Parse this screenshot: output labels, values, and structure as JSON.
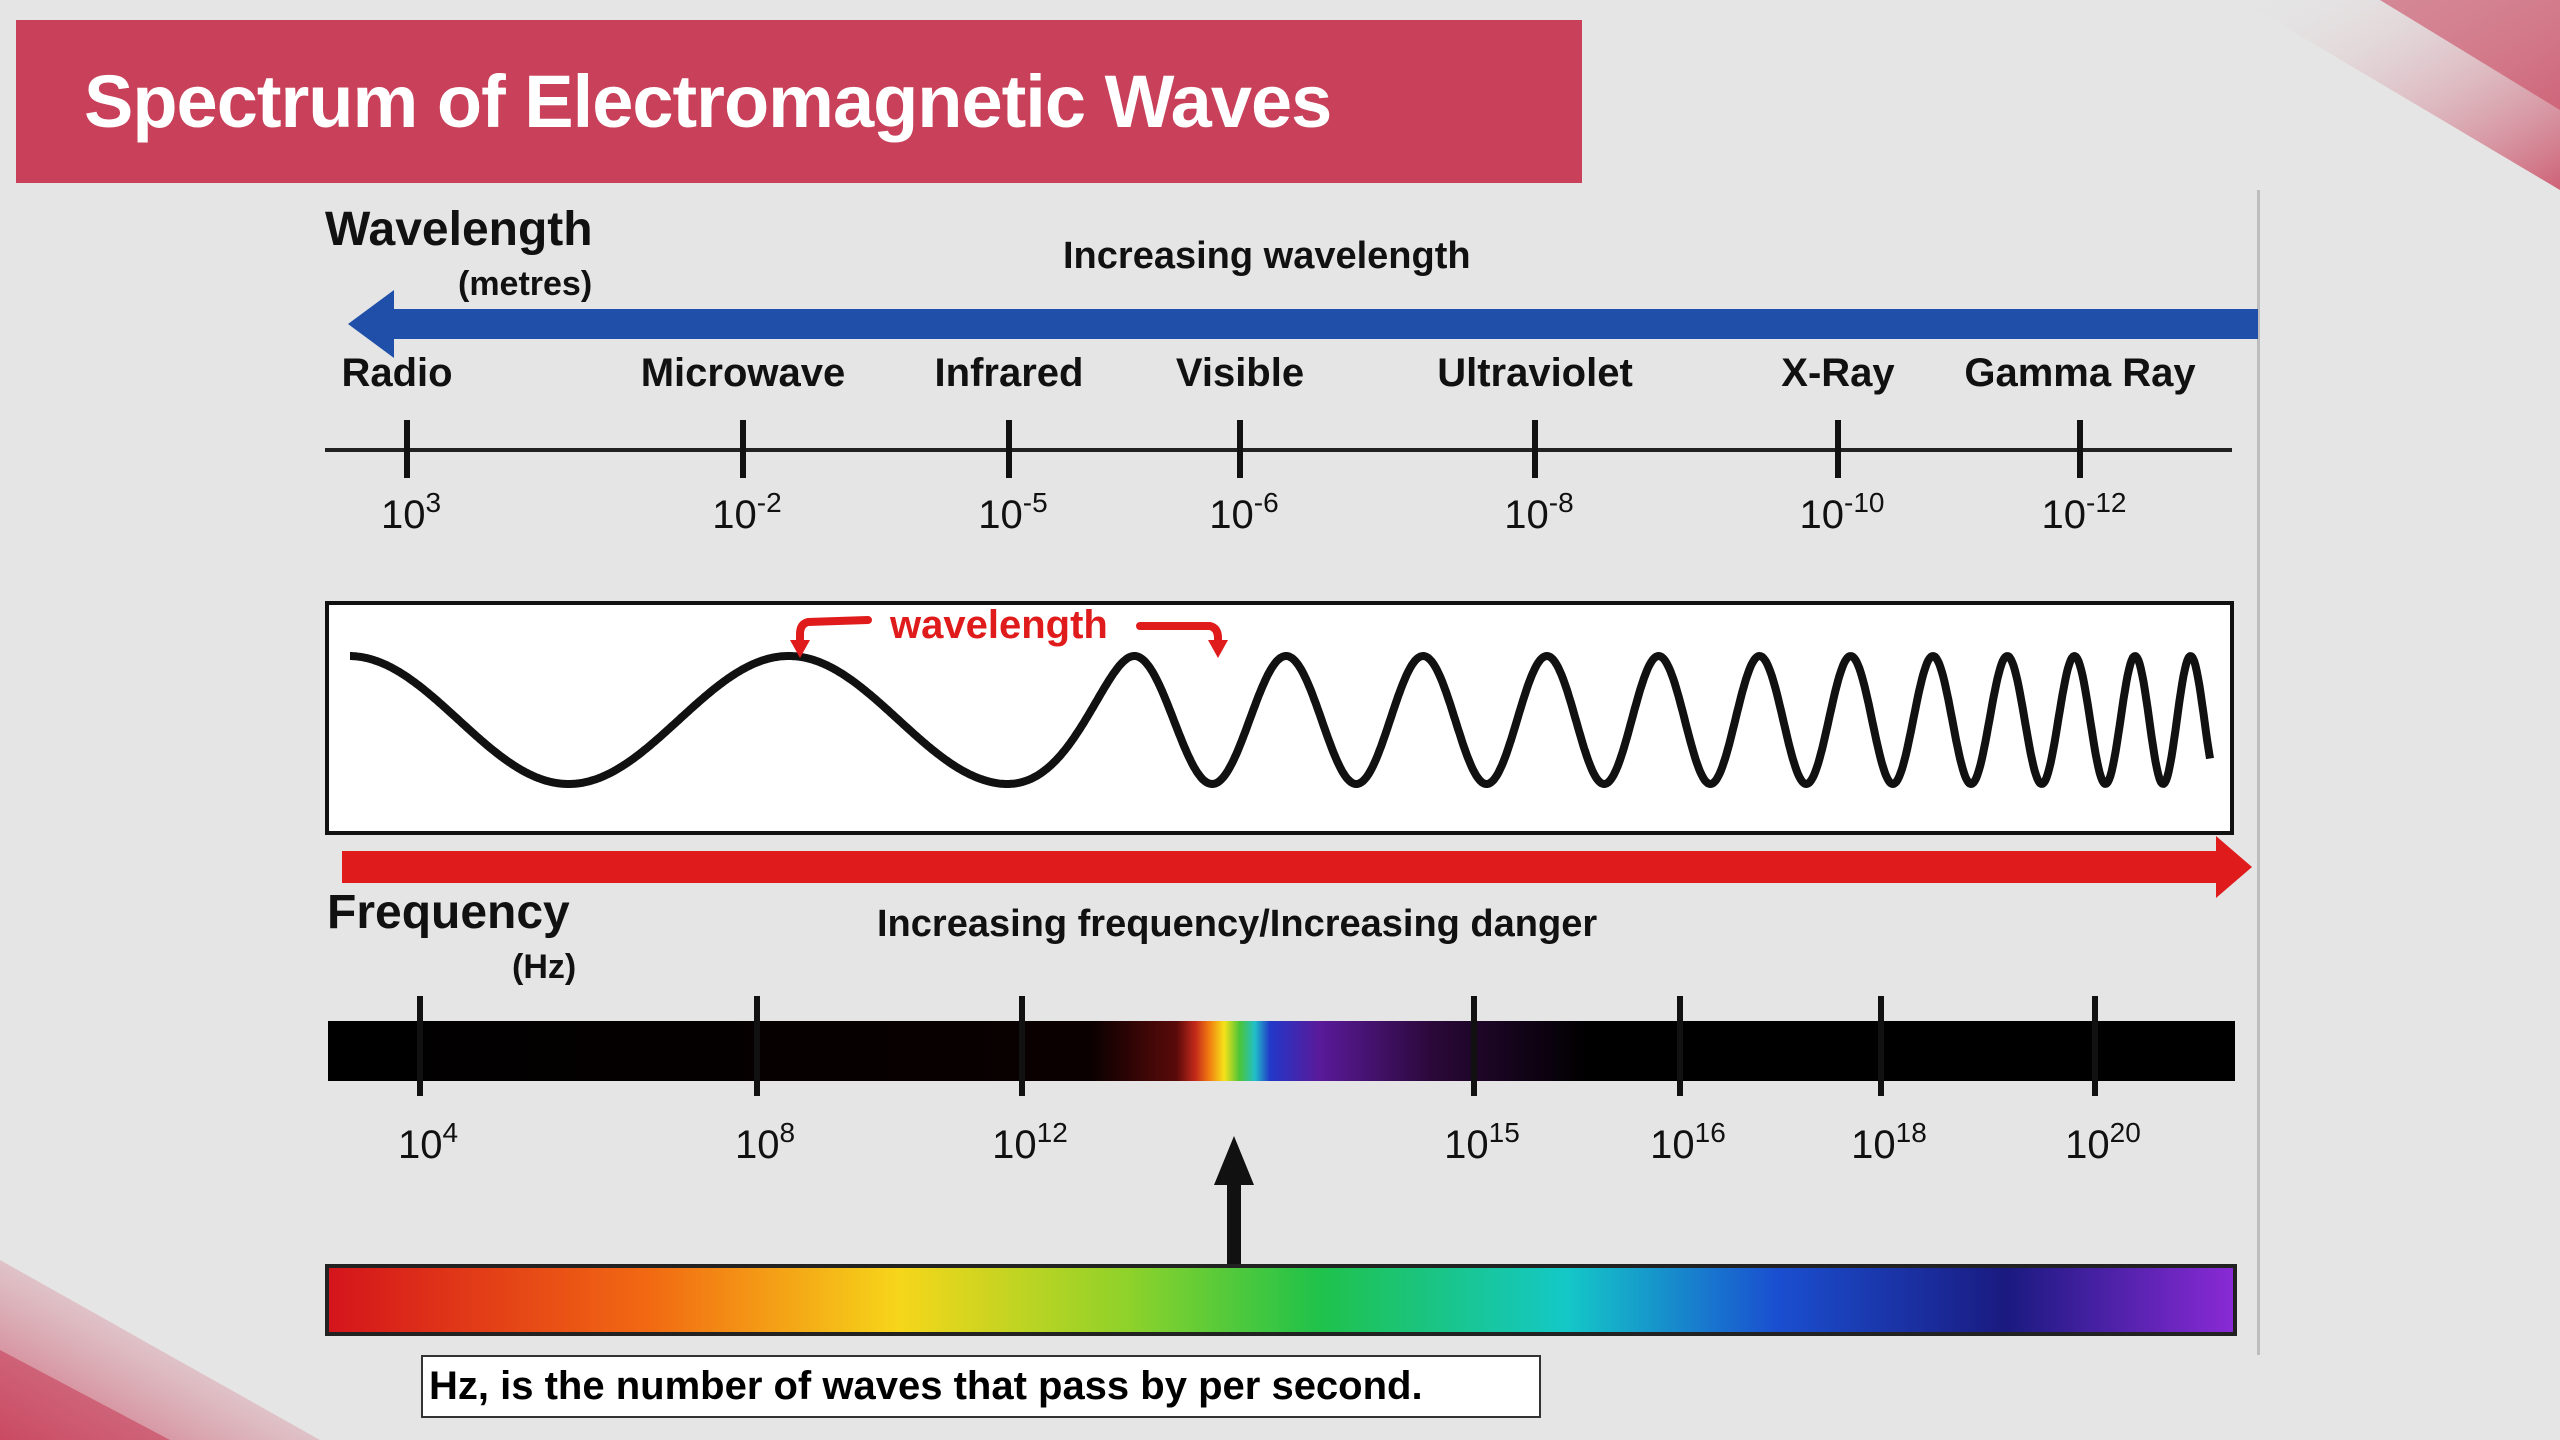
{
  "slide": {
    "title": "Spectrum of Electromagnetic Waves",
    "accent_color": "#c8405a"
  },
  "wavelength_axis": {
    "title": "Wavelength",
    "unit": "(metres)",
    "direction_label": "Increasing wavelength",
    "arrow_color": "#1f4fa8",
    "bands": [
      {
        "name": "Radio",
        "base": "10",
        "exp": "3"
      },
      {
        "name": "Microwave",
        "base": "10",
        "exp": "-2"
      },
      {
        "name": "Infrared",
        "base": "10",
        "exp": "-5"
      },
      {
        "name": "Visible",
        "base": "10",
        "exp": "-6"
      },
      {
        "name": "Ultraviolet",
        "base": "10",
        "exp": "-8"
      },
      {
        "name": "X-Ray",
        "base": "10",
        "exp": "-10"
      },
      {
        "name": "Gamma Ray",
        "base": "10",
        "exp": "-12"
      }
    ]
  },
  "wave_panel": {
    "label": "wavelength",
    "label_color": "#e01b1b"
  },
  "frequency_axis": {
    "title": "Frequency",
    "unit": "(Hz)",
    "direction_label": "Increasing frequency/Increasing danger",
    "arrow_color": "#e01b1b",
    "ticks": [
      {
        "base": "10",
        "exp": "4"
      },
      {
        "base": "10",
        "exp": "8"
      },
      {
        "base": "10",
        "exp": "12"
      },
      {
        "base": "10",
        "exp": "15"
      },
      {
        "base": "10",
        "exp": "16"
      },
      {
        "base": "10",
        "exp": "18"
      },
      {
        "base": "10",
        "exp": "20"
      }
    ]
  },
  "caption": {
    "text": "Hz, is the number of waves that pass by  per second."
  }
}
